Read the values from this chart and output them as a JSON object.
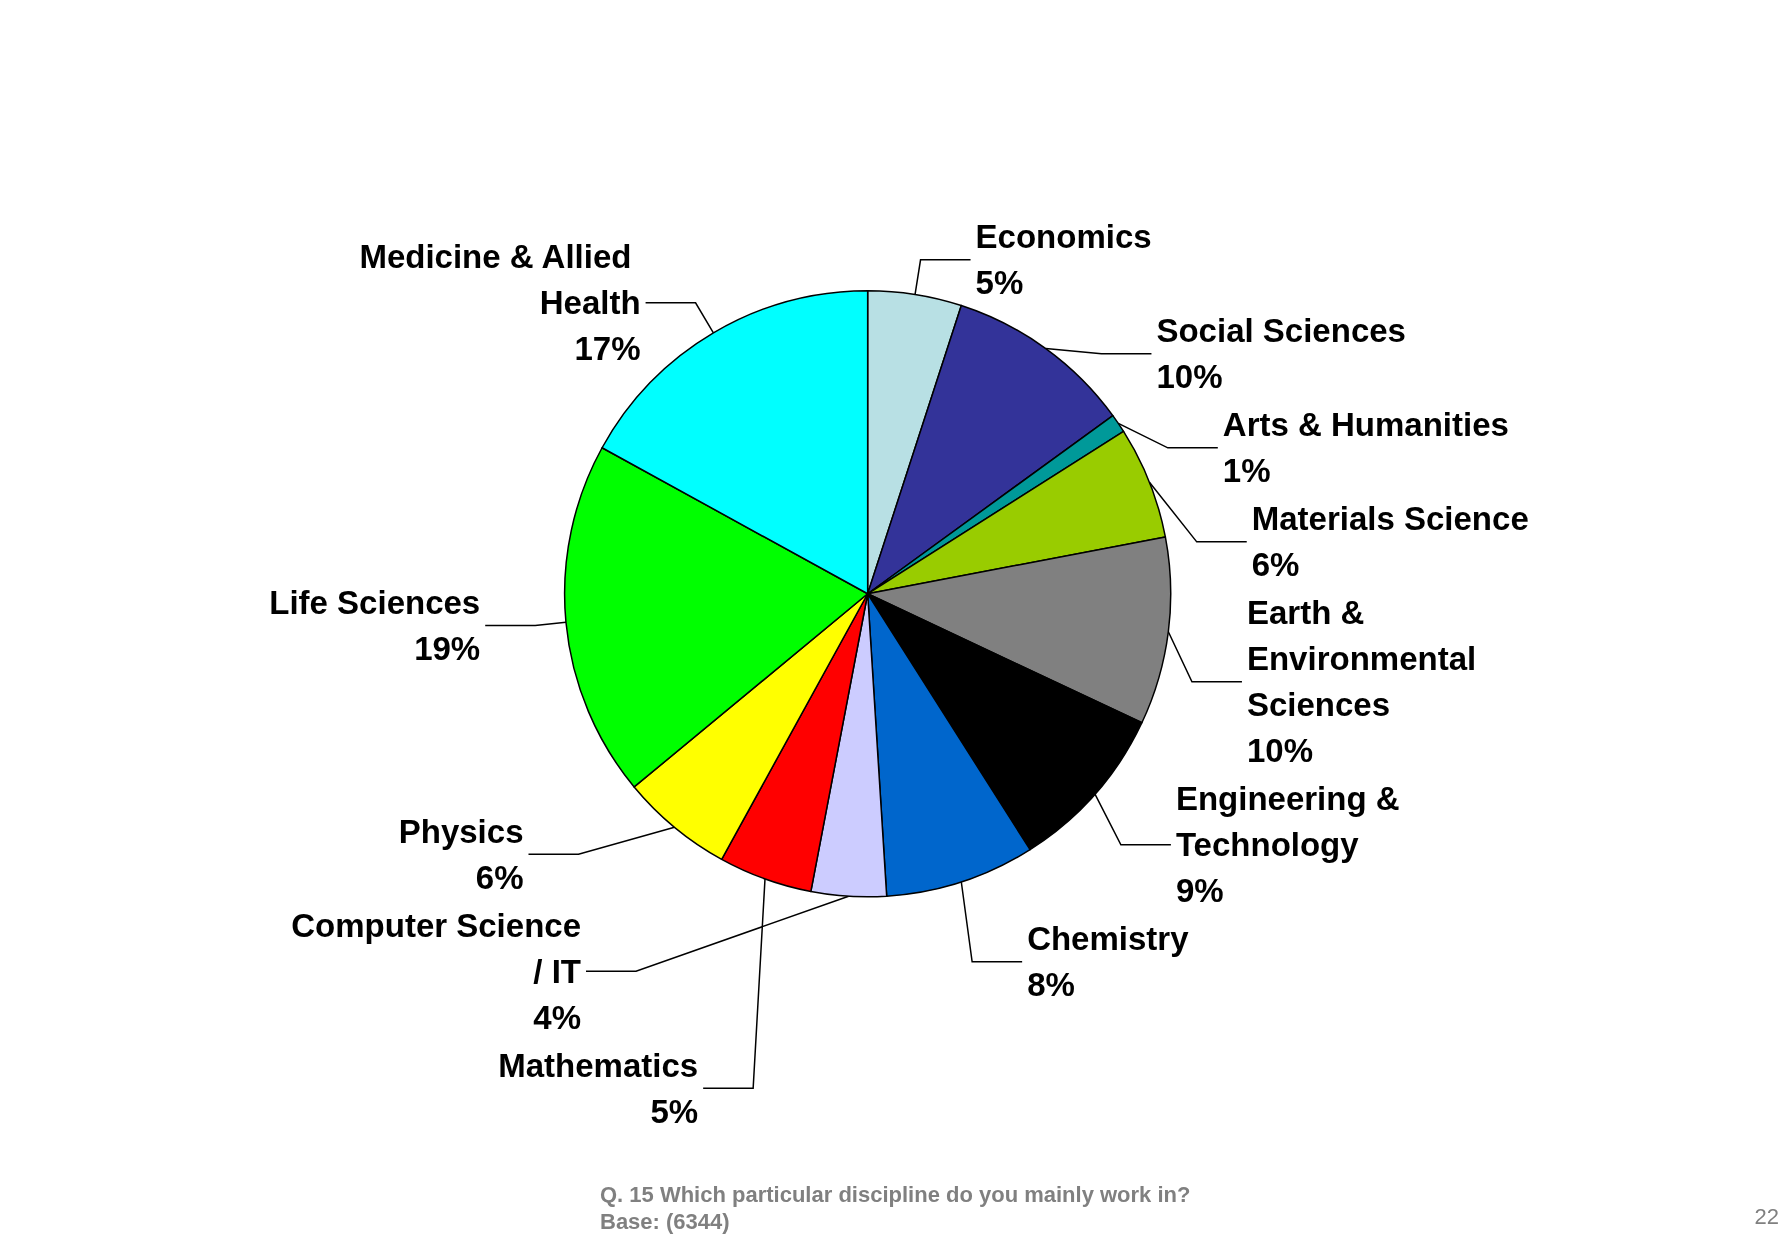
{
  "chart_data": {
    "type": "pie",
    "categories": [
      "Economics",
      "Social Sciences",
      "Arts & Humanities",
      "Materials Science",
      "Earth & Environmental Sciences",
      "Engineering & Technology",
      "Chemistry",
      "Computer Science / IT",
      "Mathematics",
      "Physics",
      "Life Sciences",
      "Medicine & Allied Health"
    ],
    "values": [
      5,
      10,
      1,
      6,
      10,
      9,
      8,
      4,
      5,
      6,
      19,
      17
    ],
    "value_labels": [
      "5%",
      "10%",
      "1%",
      "6%",
      "10%",
      "9%",
      "8%",
      "4%",
      "5%",
      "6%",
      "19%",
      "17%"
    ],
    "colors": [
      "#b8e0e4",
      "#333399",
      "#009999",
      "#99cc00",
      "#808080",
      "#000000",
      "#0066cc",
      "#ccccff",
      "#ff0000",
      "#ffff00",
      "#00ff00",
      "#00ffff"
    ],
    "annotations": [
      "Q. 15 Which particular discipline do you mainly work in?",
      "Base: (6344)",
      "22"
    ],
    "legend": false
  }
}
